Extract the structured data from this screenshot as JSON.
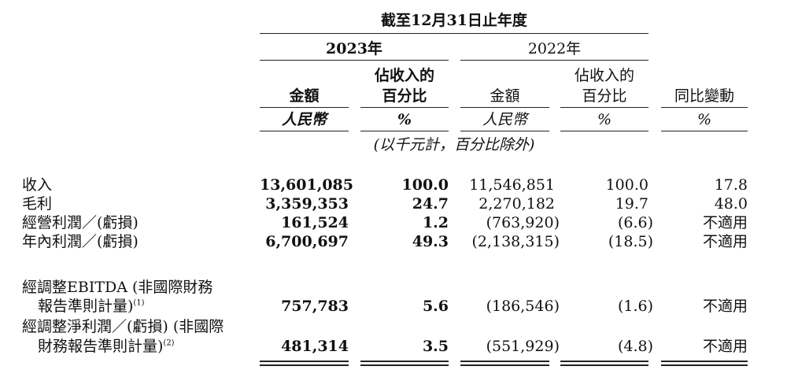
{
  "header": {
    "period_title": "截至12月31日止年度",
    "year_2023": "2023年",
    "year_2022": "2022年",
    "col_amount": "金額",
    "col_pct_line1": "佔收入的",
    "col_pct_line2": "百分比",
    "col_yoy": "同比變動",
    "unit_rmb": "人民幣",
    "unit_pct": "%",
    "note": "(以千元計，百分比除外)"
  },
  "rows": [
    {
      "label": "收入",
      "v2023": "13,601,085",
      "p2023": "100.0",
      "v2022": "11,546,851",
      "p2022": "100.0",
      "yoy": "17.8"
    },
    {
      "label": "毛利",
      "v2023": "3,359,353",
      "p2023": "24.7",
      "v2022": "2,270,182",
      "p2022": "19.7",
      "yoy": "48.0"
    },
    {
      "label": "經營利潤／(虧損)",
      "v2023": "161,524",
      "p2023": "1.2",
      "v2022": "(763,920)",
      "p2022": "(6.6)",
      "yoy": "不適用"
    },
    {
      "label": "年內利潤／(虧損)",
      "v2023": "6,700,697",
      "p2023": "49.3",
      "v2022": "(2,138,315)",
      "p2022": "(18.5)",
      "yoy": "不適用"
    },
    {
      "label1": "經調整EBITDA (非國際財務",
      "label2": "報告準則計量)",
      "note_mark": "(1)",
      "v2023": "757,783",
      "p2023": "5.6",
      "v2022": "(186,546)",
      "p2022": "(1.6)",
      "yoy": "不適用"
    },
    {
      "label1": "經調整淨利潤／(虧損) (非國際",
      "label2": "財務報告準則計量)",
      "note_mark": "(2)",
      "v2023": "481,314",
      "p2023": "3.5",
      "v2022": "(551,929)",
      "p2022": "(4.8)",
      "yoy": "不適用"
    }
  ]
}
